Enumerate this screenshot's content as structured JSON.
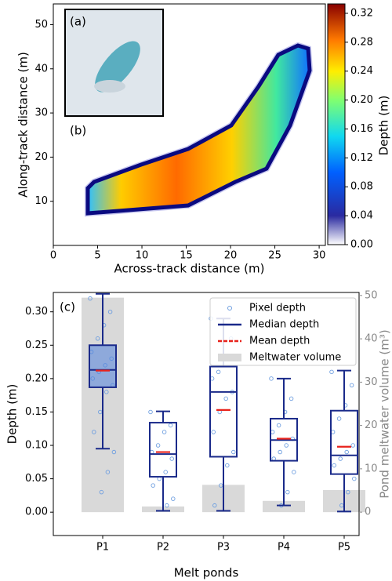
{
  "chart_data": [
    {
      "type": "heatmap",
      "xlabel": "Across-track distance (m)",
      "ylabel": "Along-track distance (m)",
      "annotations": [
        "(a)",
        "(b)"
      ],
      "xlim": [
        0,
        30.7
      ],
      "xticks": [
        0,
        5,
        10,
        15,
        20,
        25,
        30
      ],
      "ylim": [
        0,
        54.7
      ],
      "yticks": [
        10,
        20,
        30,
        40,
        50
      ],
      "colorbar": {
        "label": "Depth (m)",
        "lim": [
          0,
          0.333
        ],
        "ticks": [
          {
            "value": 0,
            "label": "0.00"
          },
          {
            "value": 0.04,
            "label": "0.04"
          },
          {
            "value": 0.08,
            "label": "0.08"
          },
          {
            "value": 0.12,
            "label": "0.12"
          },
          {
            "value": 0.16,
            "label": "0.16"
          },
          {
            "value": 0.2,
            "label": "0.20"
          },
          {
            "value": 0.24,
            "label": "0.24"
          },
          {
            "value": 0.28,
            "label": "0.28"
          },
          {
            "value": 0.32,
            "label": "0.32"
          }
        ]
      }
    },
    {
      "type": "boxplot",
      "annotation": "(c)",
      "xlabel": "Melt ponds",
      "ylabel": "Depth (m)",
      "y2label": "Pond meltwater volume (m³)",
      "categories": [
        "P1",
        "P2",
        "P3",
        "P4",
        "P5"
      ],
      "ylim": [
        -0.035,
        0.329
      ],
      "yticks": [
        {
          "value": 0,
          "label": "0.00"
        },
        {
          "value": 0.05,
          "label": "0.05"
        },
        {
          "value": 0.1,
          "label": "0.10"
        },
        {
          "value": 0.15,
          "label": "0.15"
        },
        {
          "value": 0.2,
          "label": "0.20"
        },
        {
          "value": 0.25,
          "label": "0.25"
        },
        {
          "value": 0.3,
          "label": "0.30"
        }
      ],
      "y2lim": [
        -5.4,
        50.7
      ],
      "y2ticks": [
        0,
        10,
        20,
        30,
        40,
        50
      ],
      "pixels": {
        "name": "Pixel depth",
        "color": "#6f9fe0",
        "values": [
          [
            0.32,
            0.3,
            0.28,
            0.26,
            0.24,
            0.23,
            0.22,
            0.21,
            0.2,
            0.19,
            0.18,
            0.15,
            0.12,
            0.09,
            0.06,
            0.03
          ],
          [
            0.15,
            0.13,
            0.12,
            0.1,
            0.09,
            0.08,
            0.06,
            0.05,
            0.04,
            0.02,
            0.01
          ],
          [
            0.29,
            0.26,
            0.23,
            0.21,
            0.2,
            0.18,
            0.17,
            0.15,
            0.12,
            0.09,
            0.07,
            0.04,
            0.01
          ],
          [
            0.2,
            0.17,
            0.15,
            0.13,
            0.12,
            0.11,
            0.1,
            0.09,
            0.08,
            0.06,
            0.03,
            0.01
          ],
          [
            0.21,
            0.19,
            0.16,
            0.14,
            0.12,
            0.1,
            0.09,
            0.08,
            0.07,
            0.05,
            0.03,
            0.01
          ]
        ]
      },
      "boxes": {
        "name": "Median depth",
        "color": "#1a2a8a",
        "whisker_low": [
          0.095,
          0.002,
          0.002,
          0.01,
          0.001
        ],
        "q1": [
          0.187,
          0.053,
          0.083,
          0.077,
          0.057
        ],
        "median": [
          0.213,
          0.087,
          0.18,
          0.108,
          0.085
        ],
        "q3": [
          0.25,
          0.134,
          0.218,
          0.14,
          0.152
        ],
        "whisker_high": [
          0.327,
          0.151,
          0.29,
          0.2,
          0.212
        ]
      },
      "mean": {
        "name": "Mean depth",
        "color": "#e8231c",
        "values": [
          0.212,
          0.09,
          0.153,
          0.11,
          0.098
        ]
      },
      "volume": {
        "name": "Meltwater volume",
        "color": "#d9d9d9",
        "axis": "y2",
        "values": [
          49.5,
          1.3,
          6.3,
          2.6,
          5.1
        ]
      }
    }
  ]
}
